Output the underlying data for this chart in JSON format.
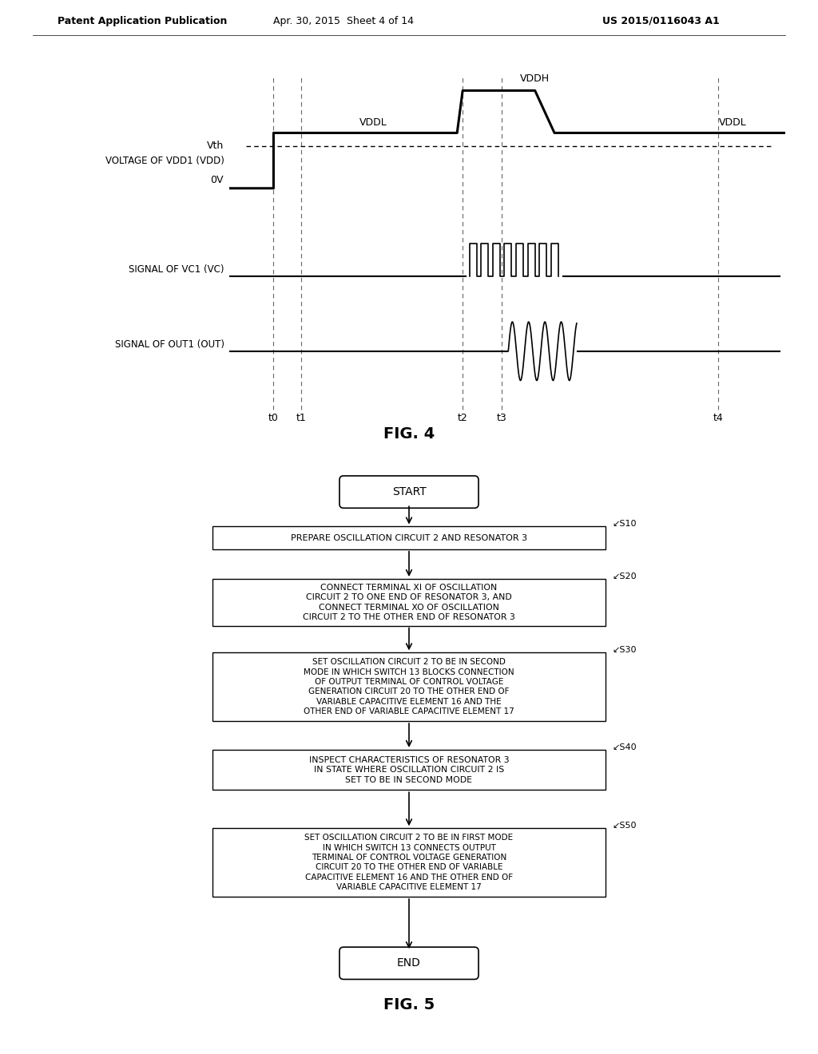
{
  "bg_color": "#ffffff",
  "header_left": "Patent Application Publication",
  "header_center": "Apr. 30, 2015  Sheet 4 of 14",
  "header_right": "US 2015/0116043 A1",
  "fig4_title": "FIG. 4",
  "fig5_title": "FIG. 5",
  "vth_label": "Vth",
  "vddh_label": "VDDH",
  "vddl_label": "VDDL",
  "ov_label": "0V",
  "time_labels": [
    "t0",
    "t1",
    "t2",
    "t3",
    "t4"
  ],
  "waveform_row1_label": "VOLTAGE OF VDD1 (VDD)",
  "waveform_row2_label": "SIGNAL OF VC1 (VC)",
  "waveform_row3_label": "SIGNAL OF OUT1 (OUT)",
  "s10_text": "PREPARE OSCILLATION CIRCUIT 2 AND RESONATOR 3",
  "s20_text": "CONNECT TERMINAL XI OF OSCILLATION\nCIRCUIT 2 TO ONE END OF RESONATOR 3, AND\nCONNECT TERMINAL XO OF OSCILLATION\nCIRCUIT 2 TO THE OTHER END OF RESONATOR 3",
  "s30_text": "SET OSCILLATION CIRCUIT 2 TO BE IN SECOND\nMODE IN WHICH SWITCH 13 BLOCKS CONNECTION\nOF OUTPUT TERMINAL OF CONTROL VOLTAGE\nGENERATION CIRCUIT 20 TO THE OTHER END OF\nVARIABLE CAPACITIVE ELEMENT 16 AND THE\nOTHER END OF VARIABLE CAPACITIVE ELEMENT 17",
  "s40_text": "INSPECT CHARACTERISTICS OF RESONATOR 3\nIN STATE WHERE OSCILLATION CIRCUIT 2 IS\nSET TO BE IN SECOND MODE",
  "s50_text": "SET OSCILLATION CIRCUIT 2 TO BE IN FIRST MODE\nIN WHICH SWITCH 13 CONNECTS OUTPUT\nTERMINAL OF CONTROL VOLTAGE GENERATION\nCIRCUIT 20 TO THE OTHER END OF VARIABLE\nCAPACITIVE ELEMENT 16 AND THE OTHER END OF\nVARIABLE CAPACITIVE ELEMENT 17"
}
